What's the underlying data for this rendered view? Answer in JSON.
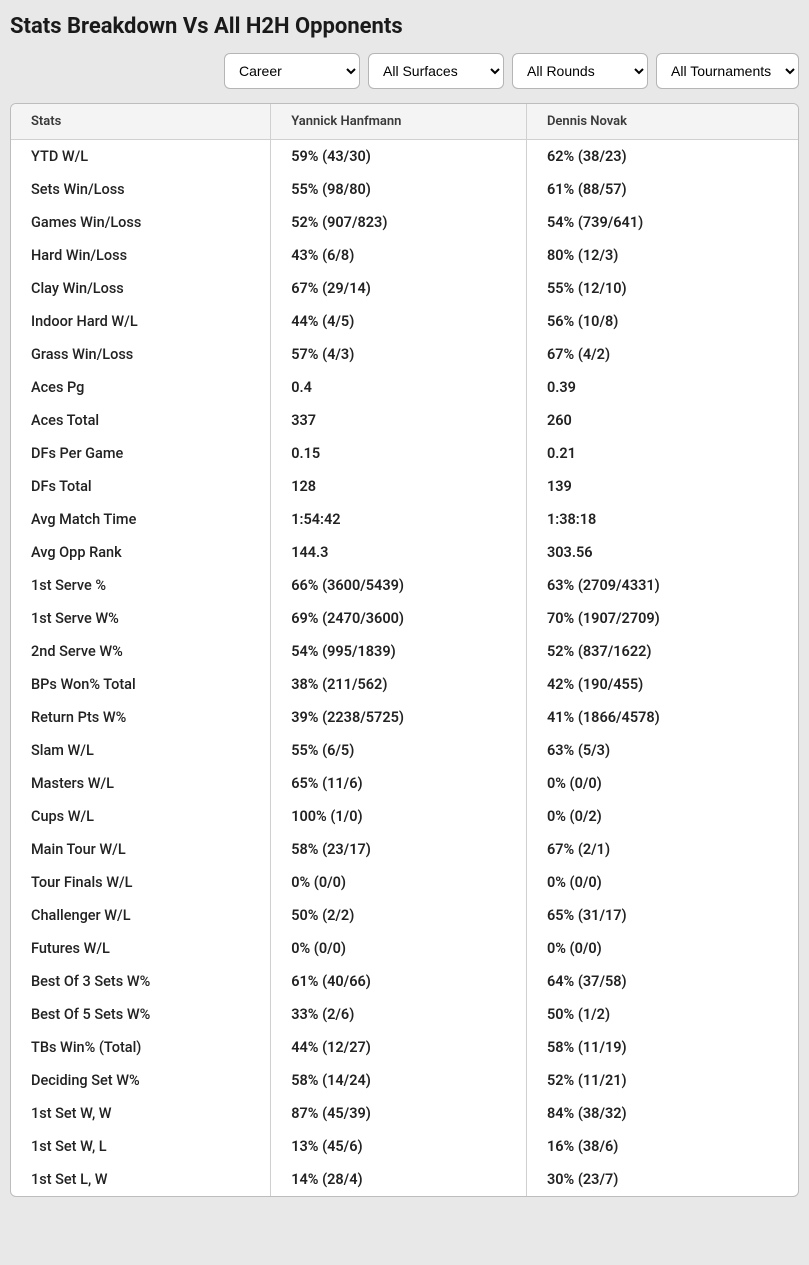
{
  "heading": "Stats Breakdown Vs All H2H Opponents",
  "filters": {
    "period": "Career",
    "surface": "All Surfaces",
    "round": "All Rounds",
    "tournament": "All Tournaments"
  },
  "table": {
    "columns": {
      "stat": "Stats",
      "p1": "Yannick Hanfmann",
      "p2": "Dennis Novak"
    },
    "rows": [
      {
        "stat": "YTD W/L",
        "p1": "59% (43/30)",
        "p2": "62% (38/23)"
      },
      {
        "stat": "Sets Win/Loss",
        "p1": "55% (98/80)",
        "p2": "61% (88/57)"
      },
      {
        "stat": "Games Win/Loss",
        "p1": "52% (907/823)",
        "p2": "54% (739/641)"
      },
      {
        "stat": "Hard Win/Loss",
        "p1": "43% (6/8)",
        "p2": "80% (12/3)"
      },
      {
        "stat": "Clay Win/Loss",
        "p1": "67% (29/14)",
        "p2": "55% (12/10)"
      },
      {
        "stat": "Indoor Hard W/L",
        "p1": "44% (4/5)",
        "p2": "56% (10/8)"
      },
      {
        "stat": "Grass Win/Loss",
        "p1": "57% (4/3)",
        "p2": "67% (4/2)"
      },
      {
        "stat": "Aces Pg",
        "p1": "0.4",
        "p2": "0.39"
      },
      {
        "stat": "Aces Total",
        "p1": "337",
        "p2": "260"
      },
      {
        "stat": "DFs Per Game",
        "p1": "0.15",
        "p2": "0.21"
      },
      {
        "stat": "DFs Total",
        "p1": "128",
        "p2": "139"
      },
      {
        "stat": "Avg Match Time",
        "p1": "1:54:42",
        "p2": "1:38:18"
      },
      {
        "stat": "Avg Opp Rank",
        "p1": "144.3",
        "p2": "303.56"
      },
      {
        "stat": "1st Serve %",
        "p1": "66% (3600/5439)",
        "p2": "63% (2709/4331)"
      },
      {
        "stat": "1st Serve W%",
        "p1": "69% (2470/3600)",
        "p2": "70% (1907/2709)"
      },
      {
        "stat": "2nd Serve W%",
        "p1": "54% (995/1839)",
        "p2": "52% (837/1622)"
      },
      {
        "stat": "BPs Won% Total",
        "p1": "38% (211/562)",
        "p2": "42% (190/455)"
      },
      {
        "stat": "Return Pts W%",
        "p1": "39% (2238/5725)",
        "p2": "41% (1866/4578)"
      },
      {
        "stat": "Slam W/L",
        "p1": "55% (6/5)",
        "p2": "63% (5/3)"
      },
      {
        "stat": "Masters W/L",
        "p1": "65% (11/6)",
        "p2": "0% (0/0)"
      },
      {
        "stat": "Cups W/L",
        "p1": "100% (1/0)",
        "p2": "0% (0/2)"
      },
      {
        "stat": "Main Tour W/L",
        "p1": "58% (23/17)",
        "p2": "67% (2/1)"
      },
      {
        "stat": "Tour Finals W/L",
        "p1": "0% (0/0)",
        "p2": "0% (0/0)"
      },
      {
        "stat": "Challenger W/L",
        "p1": "50% (2/2)",
        "p2": "65% (31/17)"
      },
      {
        "stat": "Futures W/L",
        "p1": "0% (0/0)",
        "p2": "0% (0/0)"
      },
      {
        "stat": "Best Of 3 Sets W%",
        "p1": "61% (40/66)",
        "p2": "64% (37/58)"
      },
      {
        "stat": "Best Of 5 Sets W%",
        "p1": "33% (2/6)",
        "p2": "50% (1/2)"
      },
      {
        "stat": "TBs Win% (Total)",
        "p1": "44% (12/27)",
        "p2": "58% (11/19)"
      },
      {
        "stat": "Deciding Set W%",
        "p1": "58% (14/24)",
        "p2": "52% (11/21)"
      },
      {
        "stat": "1st Set W, W",
        "p1": "87% (45/39)",
        "p2": "84% (38/32)"
      },
      {
        "stat": "1st Set W, L",
        "p1": "13% (45/6)",
        "p2": "16% (38/6)"
      },
      {
        "stat": "1st Set L, W",
        "p1": "14% (28/4)",
        "p2": "30% (23/7)"
      }
    ]
  }
}
